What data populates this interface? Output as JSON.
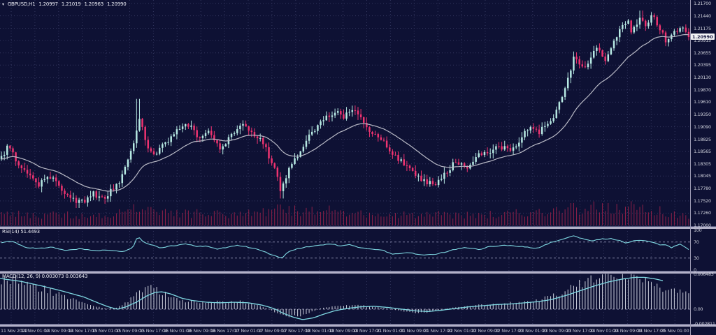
{
  "header": {
    "symbol": "GBPUSD,H1",
    "open": "1.20997",
    "high": "1.21019",
    "low": "1.20963",
    "close": "1.20990"
  },
  "colors": {
    "background": "#0e1134",
    "grid": "#33365e",
    "bull": "#b6e8e2",
    "bear": "#ee3370",
    "ma_line": "#b9bac6",
    "indicator_line": "#7fd8e2",
    "volume": "#8e2048",
    "histogram": "#cdd0dd",
    "separator": "#b3b1c8",
    "separator_edge": "#55587e",
    "axis_text": "#ccced9",
    "time_text": "#c0c2d0",
    "title_text": "#e9eaf2",
    "level_dash": "#8183a3",
    "axis_border": "#9a98b2",
    "badge_bg": "#f2f2f5",
    "badge_text": "#10123a"
  },
  "chart_data": [
    {
      "type": "candlestick",
      "title": "GBPUSD,H1",
      "symbol": "GBPUSD",
      "timeframe": "H1",
      "ohlc_open": "1.20997",
      "ohlc_high": "1.21019",
      "ohlc_low": "1.20963",
      "ohlc_close": "1.20990",
      "last_price": "1.20990",
      "ylim": [
        1.17,
        1.217
      ],
      "grid": true,
      "num_candles": 240,
      "y_axis_labels": [
        "1.21700",
        "1.21440",
        "1.21175",
        "1.20915",
        "1.20655",
        "1.20395",
        "1.20130",
        "1.19870",
        "1.19610",
        "1.19350",
        "1.19090",
        "1.18825",
        "1.18565",
        "1.18305",
        "1.18045",
        "1.17780",
        "1.17520",
        "1.17260",
        "1.17000"
      ],
      "x_axis_labels": [
        "11 Nov 2022",
        "14 Nov 01:00",
        "14 Nov 09:00",
        "14 Nov 17:00",
        "15 Nov 01:00",
        "15 Nov 09:00",
        "15 Nov 17:00",
        "16 Nov 01:00",
        "16 Nov 09:00",
        "16 Nov 17:00",
        "17 Nov 01:00",
        "17 Nov 09:00",
        "17 Nov 17:00",
        "18 Nov 01:00",
        "18 Nov 09:00",
        "18 Nov 17:00",
        "21 Nov 01:00",
        "21 Nov 09:00",
        "21 Nov 17:00",
        "22 Nov 01:00",
        "22 Nov 09:00",
        "22 Nov 17:00",
        "23 Nov 01:00",
        "23 Nov 09:00",
        "23 Nov 17:00",
        "24 Nov 01:00",
        "24 Nov 09:00",
        "24 Nov 17:00",
        "25 Nov 01:00"
      ],
      "close_path": [
        [
          0,
          1.184
        ],
        [
          12,
          1.1868
        ],
        [
          25,
          1.1832
        ],
        [
          40,
          1.1812
        ],
        [
          55,
          1.1783
        ],
        [
          68,
          1.1808
        ],
        [
          80,
          1.179
        ],
        [
          95,
          1.1768
        ],
        [
          110,
          1.1748
        ],
        [
          122,
          1.1752
        ],
        [
          133,
          1.177
        ],
        [
          145,
          1.1756
        ],
        [
          158,
          1.1772
        ],
        [
          170,
          1.179
        ],
        [
          182,
          1.1835
        ],
        [
          193,
          1.1885
        ],
        [
          199,
          1.193
        ],
        [
          204,
          1.19
        ],
        [
          212,
          1.1868
        ],
        [
          220,
          1.1845
        ],
        [
          228,
          1.1858
        ],
        [
          238,
          1.1878
        ],
        [
          248,
          1.1895
        ],
        [
          258,
          1.1905
        ],
        [
          267,
          1.1918
        ],
        [
          278,
          1.1898
        ],
        [
          288,
          1.1882
        ],
        [
          298,
          1.1902
        ],
        [
          308,
          1.188
        ],
        [
          316,
          1.1862
        ],
        [
          325,
          1.188
        ],
        [
          336,
          1.1898
        ],
        [
          345,
          1.1918
        ],
        [
          355,
          1.1908
        ],
        [
          365,
          1.189
        ],
        [
          375,
          1.1878
        ],
        [
          385,
          1.1845
        ],
        [
          394,
          1.1812
        ],
        [
          401,
          1.1778
        ],
        [
          408,
          1.1798
        ],
        [
          416,
          1.1828
        ],
        [
          425,
          1.1845
        ],
        [
          435,
          1.1872
        ],
        [
          445,
          1.1895
        ],
        [
          455,
          1.1912
        ],
        [
          465,
          1.1928
        ],
        [
          474,
          1.1935
        ],
        [
          482,
          1.1942
        ],
        [
          490,
          1.193
        ],
        [
          498,
          1.1938
        ],
        [
          505,
          1.1948
        ],
        [
          513,
          1.193
        ],
        [
          522,
          1.1912
        ],
        [
          532,
          1.1898
        ],
        [
          542,
          1.1885
        ],
        [
          552,
          1.1872
        ],
        [
          562,
          1.185
        ],
        [
          572,
          1.1838
        ],
        [
          582,
          1.1828
        ],
        [
          592,
          1.1812
        ],
        [
          602,
          1.18
        ],
        [
          612,
          1.179
        ],
        [
          622,
          1.1786
        ],
        [
          632,
          1.1802
        ],
        [
          642,
          1.182
        ],
        [
          652,
          1.1838
        ],
        [
          662,
          1.183
        ],
        [
          672,
          1.1822
        ],
        [
          682,
          1.1845
        ],
        [
          692,
          1.1852
        ],
        [
          702,
          1.1858
        ],
        [
          712,
          1.1872
        ],
        [
          722,
          1.1862
        ],
        [
          732,
          1.1858
        ],
        [
          742,
          1.188
        ],
        [
          752,
          1.1898
        ],
        [
          762,
          1.1905
        ],
        [
          772,
          1.1898
        ],
        [
          782,
          1.1918
        ],
        [
          792,
          1.1932
        ],
        [
          800,
          1.1958
        ],
        [
          808,
          1.1992
        ],
        [
          815,
          1.2028
        ],
        [
          822,
          1.2058
        ],
        [
          830,
          1.2042
        ],
        [
          838,
          1.2032
        ],
        [
          846,
          1.2062
        ],
        [
          853,
          1.208
        ],
        [
          860,
          1.2062
        ],
        [
          868,
          1.205
        ],
        [
          876,
          1.2088
        ],
        [
          884,
          1.2108
        ],
        [
          891,
          1.2122
        ],
        [
          898,
          1.2132
        ],
        [
          904,
          1.2108
        ],
        [
          910,
          1.2128
        ],
        [
          916,
          1.2148
        ],
        [
          922,
          1.2122
        ],
        [
          928,
          1.2135
        ],
        [
          934,
          1.2142
        ],
        [
          940,
          1.2118
        ],
        [
          946,
          1.2108
        ],
        [
          952,
          1.2092
        ],
        [
          958,
          1.21
        ],
        [
          964,
          1.2108
        ],
        [
          970,
          1.2115
        ],
        [
          976,
          1.2118
        ],
        [
          981,
          1.2108
        ],
        [
          985,
          1.2099
        ]
      ],
      "wick_spikes": [
        {
          "x": 199,
          "high": 1.1968
        },
        {
          "x": 916,
          "high": 1.2155
        },
        {
          "x": 401,
          "low": 1.1757
        },
        {
          "x": 110,
          "low": 1.1737
        }
      ],
      "ma_period": 24,
      "volume_envelope": [
        [
          0,
          0.55
        ],
        [
          40,
          0.45
        ],
        [
          80,
          0.5
        ],
        [
          120,
          0.42
        ],
        [
          160,
          0.45
        ],
        [
          195,
          0.9
        ],
        [
          215,
          0.65
        ],
        [
          250,
          0.5
        ],
        [
          290,
          0.55
        ],
        [
          330,
          0.5
        ],
        [
          370,
          0.55
        ],
        [
          400,
          0.75
        ],
        [
          440,
          0.6
        ],
        [
          480,
          0.68
        ],
        [
          515,
          0.52
        ],
        [
          555,
          0.42
        ],
        [
          590,
          0.5
        ],
        [
          625,
          0.55
        ],
        [
          660,
          0.45
        ],
        [
          695,
          0.5
        ],
        [
          730,
          0.52
        ],
        [
          765,
          0.58
        ],
        [
          800,
          0.8
        ],
        [
          835,
          0.75
        ],
        [
          870,
          0.85
        ],
        [
          905,
          0.8
        ],
        [
          940,
          0.65
        ],
        [
          965,
          0.5
        ],
        [
          985,
          0.35
        ]
      ]
    },
    {
      "type": "line",
      "name": "RSI",
      "period": 14,
      "label": "RSI(14) 51.4493",
      "current_value": 51.4493,
      "ylim": [
        0,
        100
      ],
      "levels": [
        70,
        30
      ],
      "y_ticks": [
        "100",
        "70",
        "30",
        "0"
      ],
      "points": [
        [
          0,
          68
        ],
        [
          10,
          72
        ],
        [
          20,
          70
        ],
        [
          35,
          57
        ],
        [
          55,
          54
        ],
        [
          75,
          57
        ],
        [
          95,
          49
        ],
        [
          115,
          53
        ],
        [
          135,
          48
        ],
        [
          155,
          50
        ],
        [
          175,
          46
        ],
        [
          190,
          55
        ],
        [
          197,
          84
        ],
        [
          205,
          70
        ],
        [
          215,
          64
        ],
        [
          228,
          56
        ],
        [
          245,
          60
        ],
        [
          255,
          62
        ],
        [
          267,
          66
        ],
        [
          280,
          58
        ],
        [
          295,
          60
        ],
        [
          310,
          53
        ],
        [
          325,
          57
        ],
        [
          340,
          62
        ],
        [
          352,
          58
        ],
        [
          365,
          54
        ],
        [
          380,
          44
        ],
        [
          395,
          34
        ],
        [
          403,
          29
        ],
        [
          412,
          45
        ],
        [
          425,
          53
        ],
        [
          437,
          57
        ],
        [
          450,
          60
        ],
        [
          462,
          63
        ],
        [
          475,
          65
        ],
        [
          487,
          60
        ],
        [
          500,
          64
        ],
        [
          512,
          56
        ],
        [
          530,
          52
        ],
        [
          545,
          51
        ],
        [
          562,
          39
        ],
        [
          582,
          44
        ],
        [
          602,
          38
        ],
        [
          622,
          39
        ],
        [
          645,
          49
        ],
        [
          665,
          56
        ],
        [
          685,
          51
        ],
        [
          700,
          59
        ],
        [
          725,
          62
        ],
        [
          745,
          59
        ],
        [
          769,
          54
        ],
        [
          785,
          67
        ],
        [
          802,
          75
        ],
        [
          819,
          86
        ],
        [
          832,
          79
        ],
        [
          845,
          72
        ],
        [
          859,
          77
        ],
        [
          872,
          79
        ],
        [
          885,
          74
        ],
        [
          895,
          67
        ],
        [
          905,
          72
        ],
        [
          919,
          75
        ],
        [
          932,
          70
        ],
        [
          942,
          64
        ],
        [
          952,
          62
        ],
        [
          960,
          56
        ],
        [
          972,
          66
        ],
        [
          985,
          51.4
        ]
      ]
    },
    {
      "type": "macd",
      "name": "MACD",
      "parameters": [
        12,
        26,
        9
      ],
      "label": "MACD(12, 26, 9) 0.003073 0.003643",
      "current_main": 0.003073,
      "current_signal": 0.003643,
      "y_ticks": [
        "0.006483",
        "0.00",
        "-0.002811"
      ],
      "ylim": [
        -0.002811,
        0.006483
      ],
      "signal_line": [
        [
          0,
          0.0053
        ],
        [
          30,
          0.0048
        ],
        [
          60,
          0.004
        ],
        [
          90,
          0.0031
        ],
        [
          120,
          0.0021
        ],
        [
          140,
          0.0011
        ],
        [
          155,
          0.0004
        ],
        [
          168,
          0.0
        ],
        [
          180,
          0.0004
        ],
        [
          195,
          0.0012
        ],
        [
          210,
          0.0023
        ],
        [
          222,
          0.0029
        ],
        [
          232,
          0.003
        ],
        [
          245,
          0.0026
        ],
        [
          260,
          0.0019
        ],
        [
          275,
          0.0015
        ],
        [
          295,
          0.0012
        ],
        [
          315,
          0.0011
        ],
        [
          335,
          0.0012
        ],
        [
          355,
          0.0011
        ],
        [
          375,
          0.0007
        ],
        [
          392,
          0.0001
        ],
        [
          405,
          -0.0007
        ],
        [
          420,
          -0.0014
        ],
        [
          433,
          -0.0018
        ],
        [
          448,
          -0.0015
        ],
        [
          462,
          -0.0009
        ],
        [
          478,
          -0.0003
        ],
        [
          495,
          0.0001
        ],
        [
          515,
          0.0004
        ],
        [
          535,
          0.0005
        ],
        [
          555,
          0.0003
        ],
        [
          575,
          0.0
        ],
        [
          595,
          -0.0003
        ],
        [
          612,
          -0.0004
        ],
        [
          630,
          -0.0002
        ],
        [
          650,
          0.0001
        ],
        [
          670,
          0.0004
        ],
        [
          690,
          0.0006
        ],
        [
          710,
          0.0008
        ],
        [
          730,
          0.0009
        ],
        [
          750,
          0.0011
        ],
        [
          770,
          0.0013
        ],
        [
          790,
          0.0017
        ],
        [
          810,
          0.0024
        ],
        [
          830,
          0.0032
        ],
        [
          850,
          0.004
        ],
        [
          870,
          0.0047
        ],
        [
          890,
          0.0052
        ],
        [
          908,
          0.0055
        ],
        [
          922,
          0.0055
        ],
        [
          938,
          0.0052
        ],
        [
          952,
          0.0048
        ],
        [
          968,
          0.0042
        ],
        [
          985,
          0.0036
        ]
      ],
      "histogram_envelope": [
        [
          0,
          0.0048
        ],
        [
          15,
          0.0052
        ],
        [
          35,
          0.0046
        ],
        [
          55,
          0.0038
        ],
        [
          75,
          0.0029
        ],
        [
          95,
          0.002
        ],
        [
          115,
          0.0012
        ],
        [
          135,
          0.0005
        ],
        [
          152,
          0.0001
        ],
        [
          168,
          0.0003
        ],
        [
          182,
          0.0012
        ],
        [
          196,
          0.0026
        ],
        [
          208,
          0.0037
        ],
        [
          218,
          0.0038
        ],
        [
          230,
          0.003
        ],
        [
          245,
          0.0021
        ],
        [
          262,
          0.0015
        ],
        [
          282,
          0.0012
        ],
        [
          302,
          0.0013
        ],
        [
          322,
          0.0012
        ],
        [
          342,
          0.0013
        ],
        [
          362,
          0.0009
        ],
        [
          382,
          0.0002
        ],
        [
          398,
          -0.0008
        ],
        [
          412,
          -0.0013
        ],
        [
          428,
          -0.0012
        ],
        [
          442,
          -0.0006
        ],
        [
          458,
          0.0001
        ],
        [
          475,
          0.0005
        ],
        [
          495,
          0.0006
        ],
        [
          515,
          0.0007
        ],
        [
          535,
          0.0004
        ],
        [
          555,
          0.0001
        ],
        [
          572,
          -0.0003
        ],
        [
          590,
          -0.0006
        ],
        [
          608,
          -0.0006
        ],
        [
          625,
          -0.0002
        ],
        [
          645,
          0.0002
        ],
        [
          665,
          0.0005
        ],
        [
          685,
          0.0007
        ],
        [
          705,
          0.0008
        ],
        [
          725,
          0.001
        ],
        [
          745,
          0.0012
        ],
        [
          765,
          0.0015
        ],
        [
          785,
          0.002
        ],
        [
          805,
          0.003
        ],
        [
          825,
          0.0042
        ],
        [
          845,
          0.0052
        ],
        [
          865,
          0.0059
        ],
        [
          882,
          0.0064
        ],
        [
          898,
          0.006
        ],
        [
          912,
          0.0052
        ],
        [
          926,
          0.0044
        ],
        [
          940,
          0.0038
        ],
        [
          955,
          0.0033
        ],
        [
          970,
          0.0031
        ],
        [
          985,
          0.0031
        ]
      ]
    }
  ]
}
